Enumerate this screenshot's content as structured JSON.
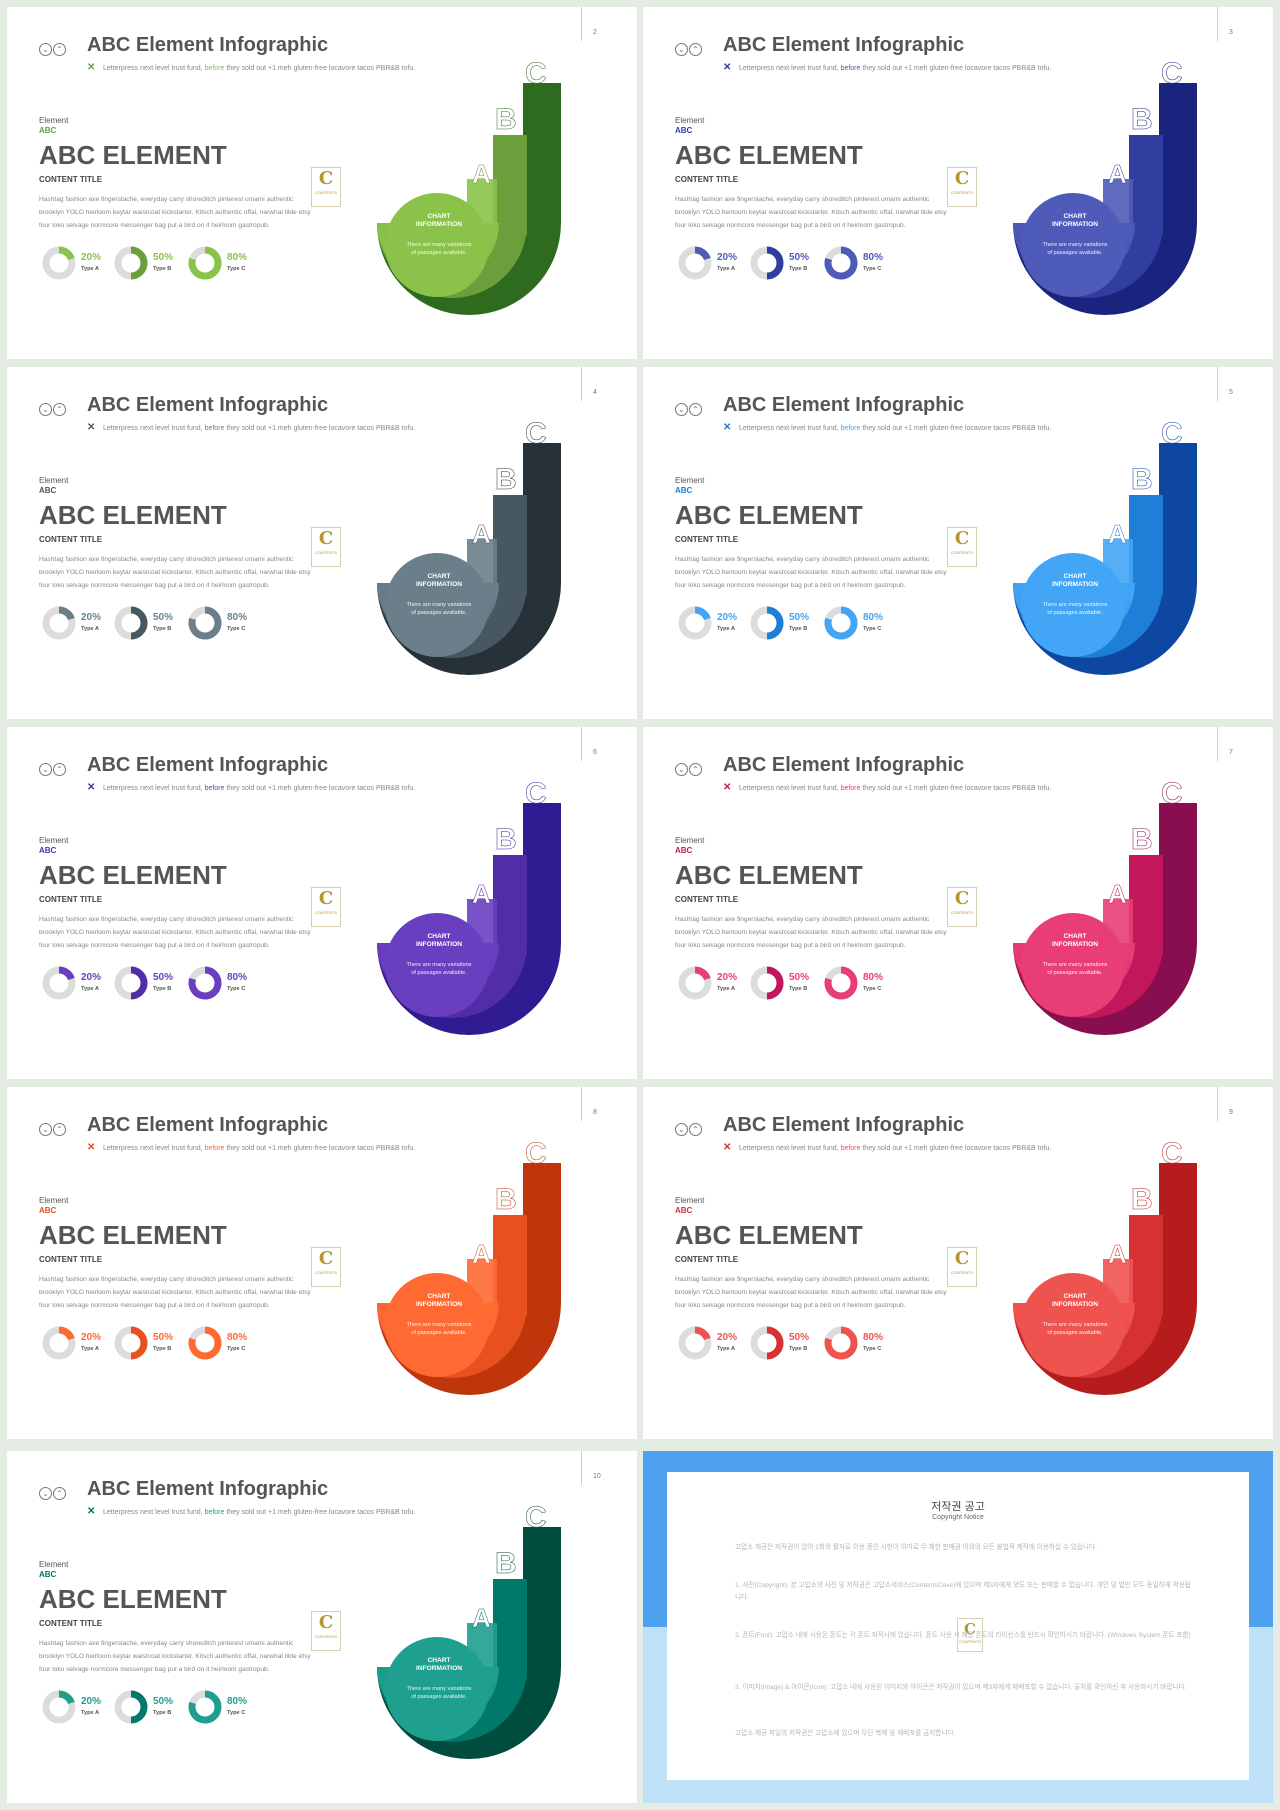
{
  "common": {
    "title": "ABC Element Infographic",
    "subtitle_pre": "Letterpress next level trust fund, ",
    "subtitle_hl": "before",
    "subtitle_post": " they sold out +1 meh gluten-free locavore tacos PBR&B tofu.",
    "element_label": "Element",
    "abc_label": "ABC",
    "heading": "ABC ELEMENT",
    "content_title": "CONTENT TITLE",
    "body_text": "Hashtag fashion axe fingerstache, everyday carry shoreditch pinterest umami authentic brooklyn YOLO heirloom keytar waistcoat kickstarter. Kitsch authentic offal, narwhal tilde etsy four loko selvage normcore messenger bag put a bird on it heirloom gastropub.",
    "logo_letter": "C",
    "logo_text": "CONTENTS",
    "chart_title_line1": "CHART",
    "chart_title_line2": "INFORMATION",
    "chart_text_line1": "There are many variations",
    "chart_text_line2": "of passages available.",
    "letters": [
      "A",
      "B",
      "C"
    ],
    "icon_left": "chevron-down-circle-icon",
    "icon_right": "chevron-up-circle-icon",
    "close_icon": "close-icon"
  },
  "stats": [
    {
      "value": "20%",
      "label": "Type A",
      "fraction": 0.2
    },
    {
      "value": "50%",
      "label": "Type B",
      "fraction": 0.5
    },
    {
      "value": "80%",
      "label": "Type C",
      "fraction": 0.8
    }
  ],
  "slides": [
    {
      "page": "2",
      "colors": [
        "#8bc34a",
        "#6a9f3c",
        "#2e6b1f"
      ]
    },
    {
      "page": "3",
      "colors": [
        "#4f5bb8",
        "#303f9f",
        "#1a237e"
      ]
    },
    {
      "page": "4",
      "colors": [
        "#6b7f8b",
        "#485862",
        "#263238"
      ]
    },
    {
      "page": "5",
      "colors": [
        "#42a5f5",
        "#1e7fd8",
        "#0d47a1"
      ]
    },
    {
      "page": "6",
      "colors": [
        "#6a3fbf",
        "#512da8",
        "#311b92"
      ]
    },
    {
      "page": "7",
      "colors": [
        "#e83e75",
        "#c2185b",
        "#880e4f"
      ]
    },
    {
      "page": "8",
      "colors": [
        "#ff6a33",
        "#e8501f",
        "#bf360c"
      ]
    },
    {
      "page": "9",
      "colors": [
        "#ef5350",
        "#d63232",
        "#b71c1c"
      ]
    },
    {
      "page": "10",
      "colors": [
        "#1fa08e",
        "#00796b",
        "#004d40"
      ]
    }
  ],
  "copyright": {
    "title": "저작권 공고",
    "subtitle": "Copyright Notice",
    "paragraphs": [
      "고맙소 제공은 저작권이 있어 1회의 활자로 이용 중인 사항이 이미로 무 제한 판매권 이외의 모든 불법적 제작에 이용하실 수 있습니다.",
      "1. 사진(Copyright): 본 고맙소의 사진 및 저작권은 고맙소서비스(ContentsCove)에 있으며 제3자에게 양도 또는 판매할 수 없습니다. 개인 및 법인 모두 동일하게 적용됩니다.",
      "2. 폰트(Font): 고맙소 내에 사용된 폰트는 각 폰트 저작사에 있습니다. 폰트 사용 시 해당 폰트의 라이선스를 반드시 확인하시기 바랍니다. (Windows System 폰트 포함)",
      "3. 이미지(Image) & 아이콘(Icon): 고맙소 내에 사용된 이미지와 아이콘은 저작권이 있으며 제3자에게 재배포할 수 없습니다. 출처를 확인하신 후 사용하시기 바랍니다.",
      "고맙소 제공 파일의 저작권은 고맙소에 있으며 무단 복제 및 재배포를 금지합니다."
    ]
  }
}
